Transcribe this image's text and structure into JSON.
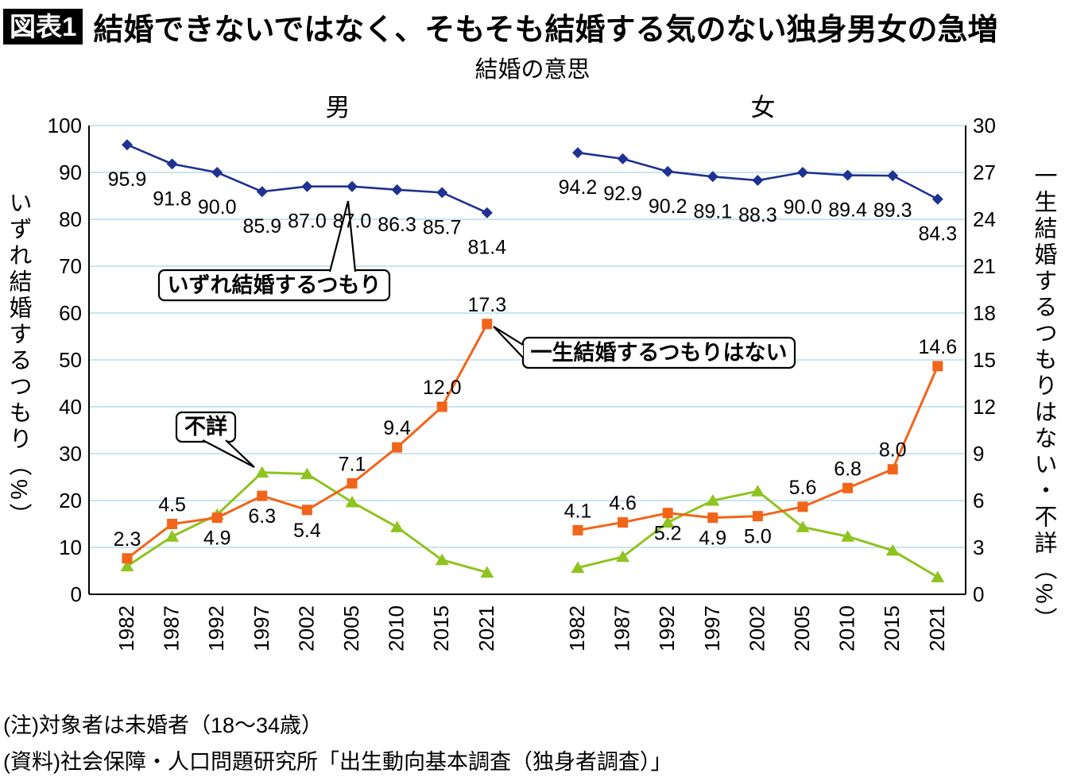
{
  "header": {
    "badge": "図表1",
    "title": "結婚できないではなく、そもそも結婚する気のない独身男女の急増"
  },
  "notes": [
    "(注)対象者は未婚者（18～34歳）",
    "(資料)社会保障・人口問題研究所「出生動向基本調査（独身者調査）」"
  ],
  "chart_data": {
    "type": "line",
    "title": "結婚の意思",
    "colors": {
      "grid": "#B5DEEC",
      "axis": "#000000"
    },
    "left_axis": {
      "title": "いずれ結婚するつもり（%）",
      "min": 0,
      "max": 100,
      "step": 10
    },
    "right_axis": {
      "title": "一生結婚するつもりはない・不詳（%）",
      "min": 0,
      "max": 30,
      "step": 3
    },
    "annotations": [
      "いずれ結婚するつもり",
      "一生結婚するつもりはない",
      "不詳"
    ],
    "panels": [
      {
        "label": "男",
        "categories": [
          "1982",
          "1987",
          "1992",
          "1997",
          "2002",
          "2005",
          "2010",
          "2015",
          "2021"
        ],
        "series": [
          {
            "name": "いずれ結婚するつもり",
            "axis": "left",
            "color": "#1F3191",
            "marker": "diamond",
            "values": [
              95.9,
              91.8,
              90.0,
              85.9,
              87.0,
              87.0,
              86.3,
              85.7,
              81.4
            ],
            "labels": [
              "95.9",
              "91.8",
              "90.0",
              "85.9",
              "87.0",
              "87.0",
              "86.3",
              "85.7",
              "81.4"
            ],
            "label_side": [
              "below",
              "below",
              "below",
              "below",
              "below",
              "below",
              "below",
              "below",
              "below"
            ]
          },
          {
            "name": "一生結婚するつもりはない",
            "axis": "right",
            "color": "#F26419",
            "marker": "square",
            "values": [
              2.3,
              4.5,
              4.9,
              6.3,
              5.4,
              7.1,
              9.4,
              12.0,
              17.3
            ],
            "labels": [
              "2.3",
              "4.5",
              "4.9",
              "6.3",
              "5.4",
              "7.1",
              "9.4",
              "12.0",
              "17.3"
            ],
            "label_side": [
              "above",
              "above",
              "below",
              "below",
              "below",
              "above",
              "above",
              "above",
              "above"
            ]
          },
          {
            "name": "不詳",
            "axis": "right",
            "color": "#8FC31F",
            "marker": "triangle",
            "values": [
              1.8,
              3.7,
              5.1,
              7.8,
              7.7,
              5.9,
              4.3,
              2.2,
              1.4
            ],
            "labels": null,
            "label_side": null
          }
        ]
      },
      {
        "label": "女",
        "categories": [
          "1982",
          "1987",
          "1992",
          "1997",
          "2002",
          "2005",
          "2010",
          "2015",
          "2021"
        ],
        "series": [
          {
            "name": "いずれ結婚するつもり",
            "axis": "left",
            "color": "#1F3191",
            "marker": "diamond",
            "values": [
              94.2,
              92.9,
              90.2,
              89.1,
              88.3,
              90.0,
              89.4,
              89.3,
              84.3
            ],
            "labels": [
              "94.2",
              "92.9",
              "90.2",
              "89.1",
              "88.3",
              "90.0",
              "89.4",
              "89.3",
              "84.3"
            ],
            "label_side": [
              "below",
              "below",
              "below",
              "below",
              "below",
              "below",
              "below",
              "below",
              "below"
            ]
          },
          {
            "name": "一生結婚するつもりはない",
            "axis": "right",
            "color": "#F26419",
            "marker": "square",
            "values": [
              4.1,
              4.6,
              5.2,
              4.9,
              5.0,
              5.6,
              6.8,
              8.0,
              14.6
            ],
            "labels": [
              "4.1",
              "4.6",
              "5.2",
              "4.9",
              "5.0",
              "5.6",
              "6.8",
              "8.0",
              "14.6"
            ],
            "label_side": [
              "above",
              "above",
              "below",
              "below",
              "below",
              "above",
              "above",
              "above",
              "above"
            ]
          },
          {
            "name": "不詳",
            "axis": "right",
            "color": "#8FC31F",
            "marker": "triangle",
            "values": [
              1.7,
              2.4,
              4.6,
              6.0,
              6.6,
              4.3,
              3.7,
              2.8,
              1.1
            ],
            "labels": null,
            "label_side": null
          }
        ]
      }
    ]
  }
}
